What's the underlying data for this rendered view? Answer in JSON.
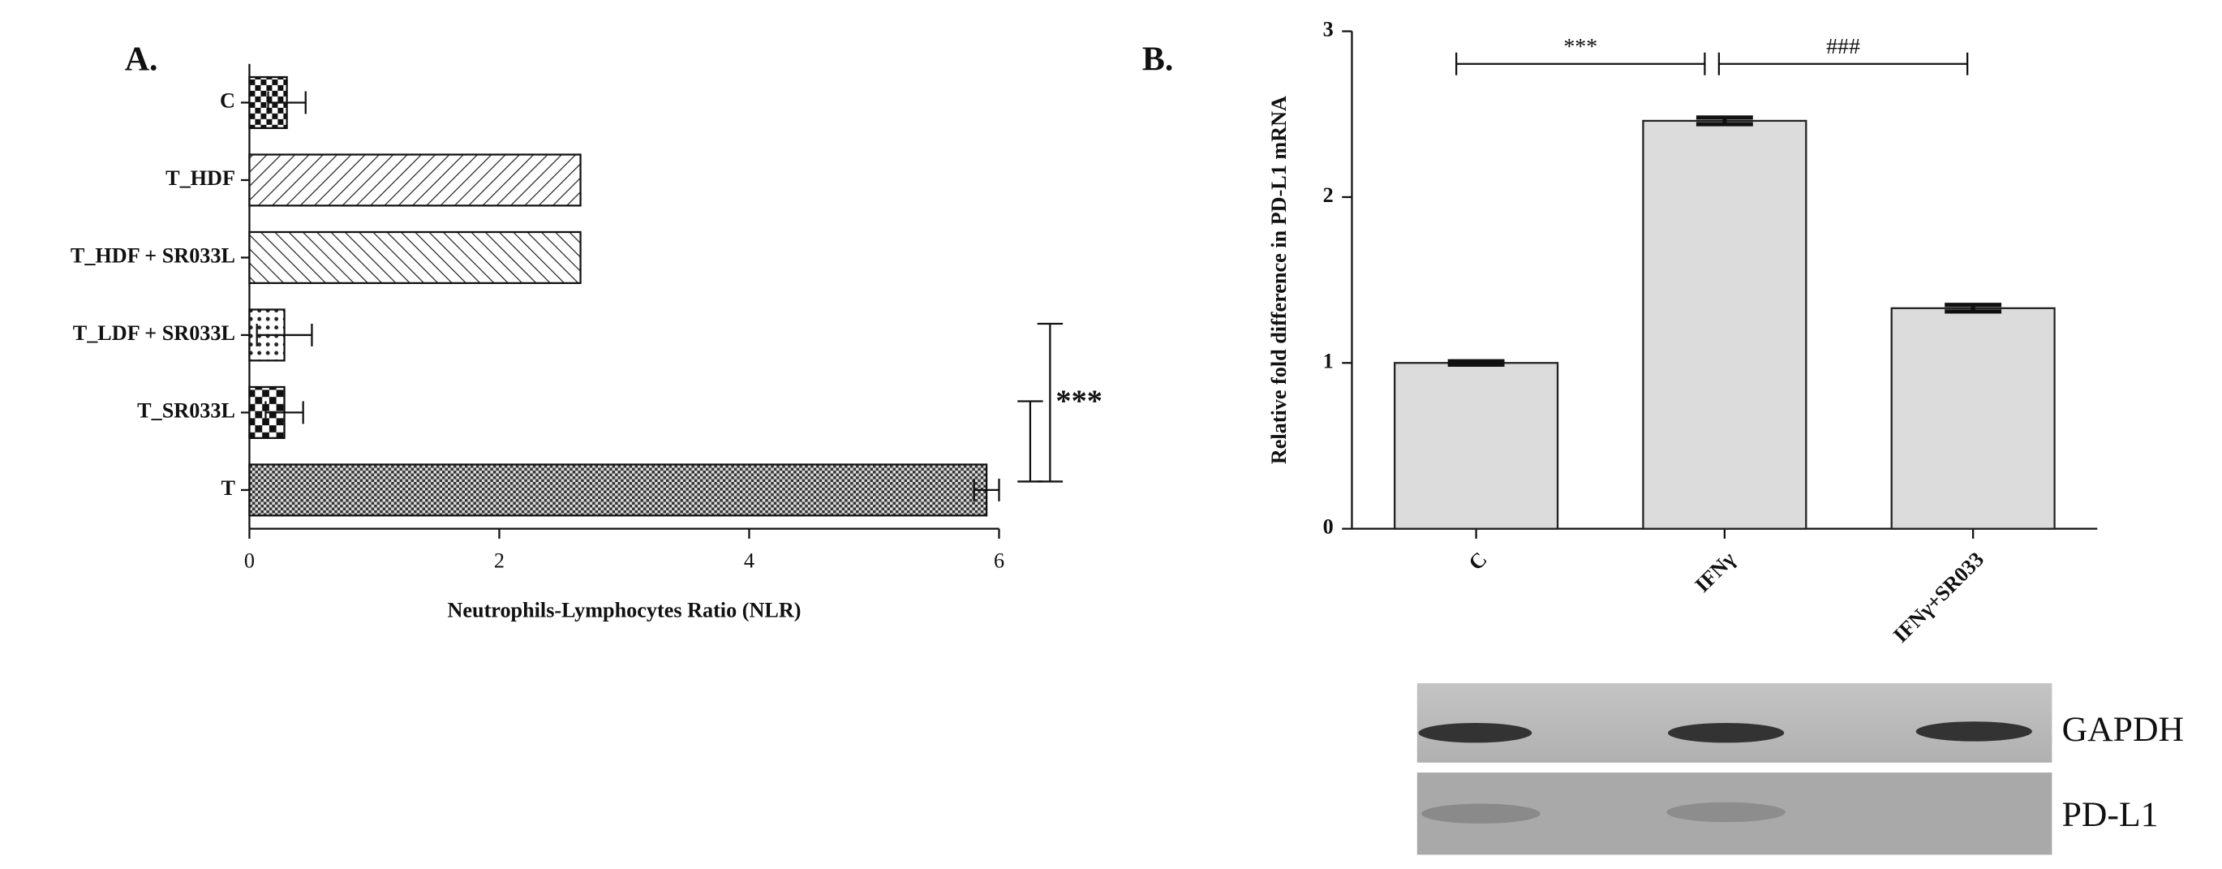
{
  "chart_data": [
    {
      "type": "bar",
      "orientation": "horizontal",
      "panel_label": "A.",
      "categories": [
        "C",
        "T_HDF",
        "T_HDF + SR033L",
        "T_LDF + SR033L",
        "T_SR033L",
        "T"
      ],
      "values": [
        0.3,
        2.65,
        2.65,
        0.28,
        0.28,
        5.9
      ],
      "errors": [
        0.15,
        null,
        null,
        0.22,
        0.15,
        0.1
      ],
      "xlabel": "Neutrophils-Lymphocytes Ratio (NLR)",
      "xlim": [
        0,
        6
      ],
      "xticks": [
        0,
        2,
        4,
        6
      ],
      "annotations": [
        "***"
      ]
    },
    {
      "type": "bar",
      "orientation": "vertical",
      "panel_label": "B.",
      "categories": [
        "C",
        "IFNγ",
        "IFNγ+SR033"
      ],
      "values": [
        1.0,
        2.46,
        1.33
      ],
      "errors": [
        0.01,
        0.02,
        0.02
      ],
      "color": "#dcdcdc",
      "ylabel": "Relative fold difference in PD-L1 mRNA",
      "ylim": [
        0,
        3
      ],
      "yticks": [
        0,
        1,
        2,
        3
      ],
      "annotations": [
        "***",
        "###"
      ],
      "blot_labels": [
        "GAPDH",
        "PD-L1"
      ]
    }
  ]
}
